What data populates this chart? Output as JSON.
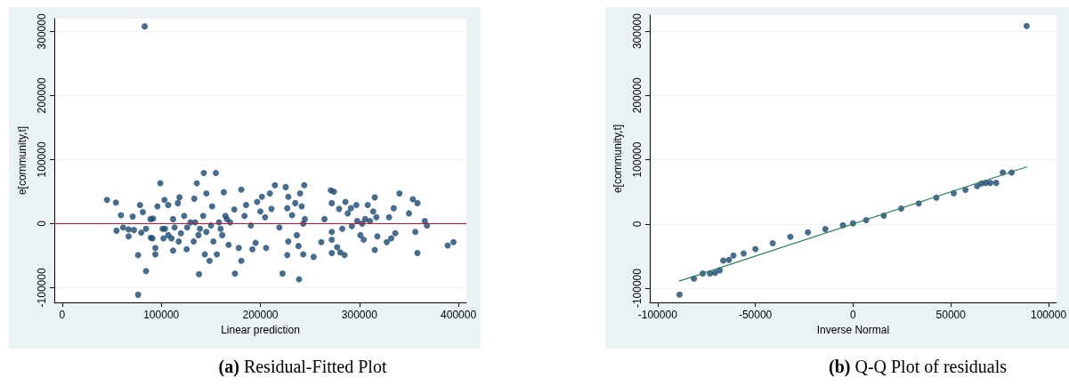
{
  "chart_data": [
    {
      "type": "scatter",
      "title": "(a) Residual-Fitted Plot",
      "xlabel": "Linear prediction",
      "ylabel": "e[community,t]",
      "xlim": [
        -8000,
        408000
      ],
      "ylim": [
        -123000,
        320000
      ],
      "xticks": [
        0,
        100000,
        200000,
        300000,
        400000
      ],
      "yticks": [
        -100000,
        0,
        100000,
        200000,
        300000
      ],
      "grid": "y",
      "ref_lines": [
        {
          "axis": "y",
          "value": 0,
          "color": "#c8102e"
        }
      ],
      "series": [
        {
          "color": "#1a476f",
          "marker": "circle",
          "x": [
            83300,
            45200,
            54200,
            59300,
            54800,
            61500,
            67000,
            71100,
            67000,
            72400,
            76600,
            76600,
            84600,
            78500,
            81400,
            79800,
            89100,
            91700,
            94000,
            94000,
            89400,
            96100,
            99000,
            103200,
            101300,
            102200,
            107000,
            110300,
            111900,
            111900,
            116700,
            118300,
            117600,
            123100,
            125600,
            129500,
            133300,
            135900,
            132700,
            138100,
            137500,
            142300,
            142900,
            143900,
            145500,
            148700,
            151300,
            152600,
            155100,
            156100,
            158300,
            163100,
            161500,
            166300,
            167900,
            173700,
            174400,
            178200,
            180800,
            180800,
            184000,
            185600,
            190400,
            192000,
            195200,
            196800,
            200000,
            201600,
            204800,
            205800,
            209600,
            211200,
            214700,
            219200,
            222400,
            225600,
            227200,
            228200,
            227200,
            228200,
            232000,
            235200,
            236800,
            238500,
            239100,
            240100,
            241700,
            243300,
            243300,
            244300,
            244900,
            253800,
            261500,
            264700,
            271100,
            272100,
            272100,
            272100,
            272100,
            274300,
            277500,
            279500,
            280700,
            282700,
            285000,
            285900,
            288200,
            291400,
            292400,
            296900,
            297800,
            301000,
            302700,
            304300,
            305900,
            308400,
            310700,
            313900,
            315500,
            315500,
            317100,
            318100,
            327600,
            329900,
            332100,
            334600,
            336200,
            340400,
            350000,
            353900,
            356400,
            358600,
            358600,
            366000,
            368200,
            389100,
            394900,
            103800,
            107000,
            113400,
            119800,
            126200,
            134200,
            139000,
            145500,
            150200,
            159900,
            164700,
            169500,
            91100,
            84600
          ],
          "values": [
            308000,
            37000,
            33000,
            13000,
            -11000,
            -6000,
            -20000,
            11000,
            -9000,
            -10000,
            -49000,
            -111000,
            -74000,
            29000,
            18000,
            -14000,
            7000,
            8000,
            -48000,
            -38000,
            -22000,
            27000,
            63000,
            37000,
            -8000,
            -23000,
            29000,
            -23000,
            7000,
            -42000,
            32000,
            41000,
            -28000,
            12000,
            -40000,
            2000,
            39000,
            63000,
            -28000,
            -79000,
            -18000,
            12000,
            79000,
            -48000,
            47000,
            -58000,
            27000,
            -28000,
            79000,
            -48000,
            2000,
            49000,
            -18000,
            7000,
            -33000,
            22000,
            -78000,
            -38000,
            53000,
            -58000,
            12000,
            29000,
            -3000,
            -40000,
            -30000,
            34000,
            19000,
            42000,
            10000,
            -38000,
            47000,
            23000,
            60000,
            -6000,
            -78000,
            57000,
            24000,
            42000,
            -49000,
            -28000,
            13000,
            32000,
            -18000,
            -35000,
            -87000,
            47000,
            27000,
            0,
            -48000,
            60000,
            7000,
            -52000,
            -29000,
            7000,
            52000,
            32000,
            -13000,
            -46000,
            -25000,
            50000,
            -37000,
            23000,
            -45000,
            -8000,
            -49000,
            34000,
            16000,
            24000,
            -4000,
            29000,
            4000,
            -18000,
            0,
            -25000,
            7000,
            29000,
            4000,
            19000,
            41000,
            -41000,
            10000,
            -20000,
            -29000,
            10000,
            -23000,
            24000,
            -15000,
            47000,
            16000,
            38000,
            -13000,
            32000,
            -46000,
            4000,
            -3000,
            -34000,
            -29000,
            -8000,
            -18000,
            -6000,
            -15000,
            -6000,
            2000,
            -8000,
            -13000,
            -3000,
            -8000,
            12000,
            2000,
            -23000,
            -8000
          ]
        }
      ]
    },
    {
      "type": "scatter",
      "title": "(b) Q-Q Plot of residuals",
      "xlabel": "Inverse Normal",
      "ylabel": "e[community,t]",
      "xlim": [
        -104000,
        104000
      ],
      "ylim": [
        -122000,
        325000
      ],
      "xticks": [
        -100000,
        -50000,
        0,
        50000,
        100000
      ],
      "yticks": [
        -100000,
        0,
        100000,
        200000,
        300000
      ],
      "grid": "y",
      "series": [
        {
          "color": "#1a476f",
          "marker": "circle",
          "x": [
            -88800,
            -81400,
            -76900,
            -73200,
            -70600,
            -68200,
            -66400,
            -63500,
            -61200,
            -56000,
            -50000,
            -41100,
            -32100,
            -23100,
            -14200,
            -5200,
            0,
            6700,
            15700,
            24600,
            33600,
            42600,
            51500,
            57500,
            63500,
            65700,
            67900,
            70200,
            73200,
            76600,
            81100,
            88800
          ],
          "values": [
            -110000,
            -85000,
            -77000,
            -77000,
            -76000,
            -72000,
            -57000,
            -56000,
            -49000,
            -46000,
            -39000,
            -30000,
            -20000,
            -13000,
            -8000,
            -2000,
            1000,
            6000,
            13000,
            24000,
            32000,
            41000,
            48000,
            53000,
            59000,
            63000,
            64000,
            64000,
            64000,
            80000,
            80000,
            308000
          ]
        },
        {
          "type": "line",
          "color": "#2e7d5b",
          "x": [
            -89000,
            89000
          ],
          "values": [
            -89000,
            89000
          ]
        }
      ]
    }
  ]
}
